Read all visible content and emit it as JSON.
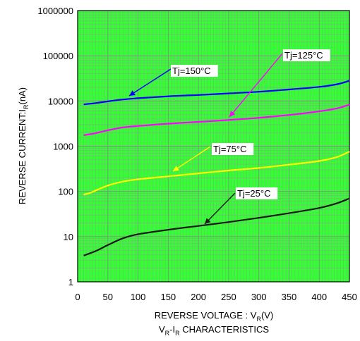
{
  "chart_data": {
    "type": "line",
    "title": "",
    "subtitle_parts": {
      "v": "V",
      "v_sub": "R",
      "dash": "-I",
      "i_sub": "R",
      "rest": " CHARACTERISTICS"
    },
    "xlabel_parts": {
      "main": "REVERSE VOLTAGE : V",
      "sub": "R",
      "unit": "(V)"
    },
    "ylabel_parts": {
      "main": "REVERSE CURRENT:I",
      "sub": "R",
      "unit": "(nA)"
    },
    "xlim": [
      0,
      450
    ],
    "ylim": [
      1,
      1000000
    ],
    "y_scale": "log",
    "grid": true,
    "x_ticks": [
      "0",
      "50",
      "100",
      "150",
      "200",
      "250",
      "300",
      "350",
      "400",
      "450"
    ],
    "y_ticks": [
      "1",
      "10",
      "100",
      "1000",
      "10000",
      "100000",
      "1000000"
    ],
    "series": [
      {
        "name": "Tj=150°C",
        "color": "#0000ff",
        "x": [
          10,
          30,
          50,
          75,
          100,
          150,
          200,
          250,
          300,
          350,
          400,
          430,
          450
        ],
        "y": [
          8400,
          9000,
          9800,
          10800,
          11500,
          12700,
          13600,
          14700,
          16000,
          18000,
          20500,
          23500,
          28000
        ]
      },
      {
        "name": "Tj=125°C",
        "color": "#ff00ff",
        "x": [
          10,
          30,
          50,
          75,
          100,
          150,
          200,
          250,
          300,
          350,
          400,
          430,
          450
        ],
        "y": [
          1750,
          1950,
          2250,
          2600,
          2800,
          3150,
          3450,
          3800,
          4250,
          4900,
          5900,
          6900,
          8300
        ]
      },
      {
        "name": "Tj=75°C",
        "color": "#ffff00",
        "x": [
          10,
          20,
          30,
          50,
          75,
          100,
          150,
          200,
          250,
          300,
          350,
          400,
          430,
          450
        ],
        "y": [
          85,
          92,
          105,
          135,
          165,
          185,
          215,
          250,
          290,
          330,
          390,
          470,
          580,
          760
        ]
      },
      {
        "name": "Tj=25°C",
        "color": "#1a1a1a",
        "x": [
          10,
          30,
          50,
          75,
          100,
          150,
          200,
          250,
          300,
          350,
          400,
          430,
          450
        ],
        "y": [
          3.8,
          4.8,
          6.5,
          9.2,
          11.3,
          14.2,
          17.2,
          21,
          26,
          33,
          43,
          55,
          70
        ]
      }
    ],
    "annotations": [
      {
        "label": "Tj=150°C",
        "text_xy": [
          244,
          100
        ],
        "arrow_from": [
          242,
          98
        ],
        "arrow_to": [
          183,
          136
        ]
      },
      {
        "label": "Tj=125°C",
        "text_xy": [
          402,
          78
        ],
        "arrow_from": [
          400,
          75
        ],
        "arrow_to": [
          325,
          165
        ]
      },
      {
        "label": "Tj=75°C",
        "text_xy": [
          302,
          211
        ],
        "arrow_from": [
          298,
          208
        ],
        "arrow_to": [
          245,
          243
        ]
      },
      {
        "label": "Tj=25°C",
        "text_xy": [
          336,
          275
        ],
        "arrow_from": [
          333,
          275
        ],
        "arrow_to": [
          290,
          317
        ]
      }
    ]
  }
}
